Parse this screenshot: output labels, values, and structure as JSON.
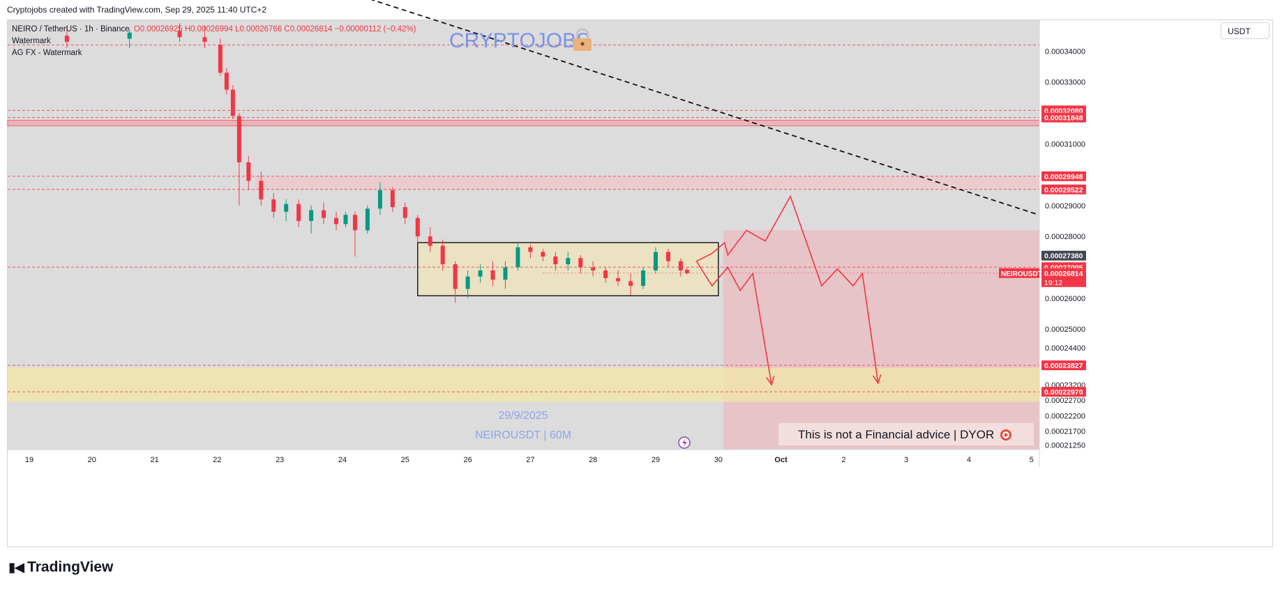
{
  "credit": "Cryptojobs created with TradingView.com, Sep 29, 2025 11:40 UTC+2",
  "legend": {
    "symbol": "NEIRO / TetherUS · 1h · Binance",
    "ohlc": "O0.00026925  H0.00026994  L0.00026766  C0.00026814  −0.00000112 (−0.42%)",
    "line2": "Watermark",
    "line3": "AG FX - Watermark"
  },
  "currency_button": "USDT",
  "brand": "TradingView",
  "chart_data": {
    "type": "candlestick",
    "symbol": "NEIROUSDT",
    "interval": "1h",
    "y_range": [
      0.000211,
      0.00035
    ],
    "x_ticks": [
      "19",
      "20",
      "21",
      "22",
      "23",
      "24",
      "25",
      "26",
      "27",
      "28",
      "29",
      "30",
      "Oct",
      "2",
      "3",
      "4",
      "5"
    ],
    "y_ticks": [
      "0.00034000",
      "0.00033000",
      "0.00031000",
      "0.00029000",
      "0.00028000",
      "0.00026000",
      "0.00025000",
      "0.00024400",
      "0.00023200",
      "0.00022700",
      "0.00022200",
      "0.00021700",
      "0.00021250"
    ],
    "y_tick_values": [
      0.00034,
      0.00033,
      0.00031,
      0.00029,
      0.00028,
      0.00026,
      0.00025,
      0.000244,
      0.000232,
      0.000227,
      0.000222,
      0.000217,
      0.0002125
    ],
    "price_labels": [
      {
        "text": "0.00032080",
        "value": 0.0003208,
        "color": "#f23645"
      },
      {
        "text": "0.00031848",
        "value": 0.00031848,
        "color": "#f23645"
      },
      {
        "text": "0.00029948",
        "value": 0.00029948,
        "color": "#f23645"
      },
      {
        "text": "0.00029522",
        "value": 0.00029522,
        "color": "#f23645"
      },
      {
        "text": "0.00027380",
        "value": 0.0002738,
        "color": "#434651"
      },
      {
        "text": "0.00027005",
        "value": 0.00027005,
        "color": "#f23645"
      },
      {
        "text": "0.00023827",
        "value": 0.00023827,
        "color": "#f23645"
      },
      {
        "text": "0.00022970",
        "value": 0.0002297,
        "color": "#f23645"
      }
    ],
    "last_price": {
      "symbol": "NEIROUSDT",
      "price": "0.00026814",
      "value": 0.00026814,
      "countdown": "19:12"
    },
    "watermark": "CRYPTOJOBS",
    "watermark_icon": "lock-icon",
    "date_label": "29/9/2025",
    "pair_label": "NEIROUSDT | 60M",
    "disclaimer": "This is not a Financial advice | DYOR",
    "disclaimer_icon": "target-icon",
    "lightning_icon": "lightning-icon",
    "zones": [
      {
        "name": "resistance-zone",
        "from": 0.0003158,
        "to": 0.0003176
      },
      {
        "name": "resistance-zone-2",
        "from": 0.00029522,
        "to": 0.00029948
      },
      {
        "name": "demand-zone",
        "from": 0.0002265,
        "to": 0.0002375
      },
      {
        "name": "consolidation-range",
        "from": 0.0002608,
        "to": 0.000278,
        "day_from": 25.2,
        "day_to": 30
      }
    ],
    "dashed_levels": [
      0.000342,
      0.0003208,
      0.00031848,
      0.00029948,
      0.00029522,
      0.00027005,
      0.00023827,
      0.0002297
    ],
    "trendline": [
      {
        "day": 23.8,
        "value": 0.000361
      },
      {
        "day": 35.1,
        "value": 0.0002871
      }
    ],
    "projection_scenario": [
      [
        29.65,
        0.000272
      ],
      [
        29.9,
        0.0002745
      ],
      [
        30.1,
        0.000278
      ],
      [
        30.15,
        0.000274
      ],
      [
        30.45,
        0.000282
      ],
      [
        30.75,
        0.0002785
      ],
      [
        31.15,
        0.000293
      ],
      [
        31.65,
        0.000264
      ],
      [
        31.9,
        0.0002695
      ],
      [
        32.15,
        0.000264
      ],
      [
        32.3,
        0.000268
      ],
      [
        32.55,
        0.0002325
      ]
    ],
    "projection_scenario_2": [
      [
        29.65,
        0.000272
      ],
      [
        29.9,
        0.000264
      ],
      [
        30.15,
        0.00027
      ],
      [
        30.35,
        0.0002625
      ],
      [
        30.55,
        0.000268
      ],
      [
        30.85,
        0.000232
      ]
    ],
    "candles": [
      {
        "d": 19.6,
        "o": 0.000345,
        "h": 0.000348,
        "l": 0.000341,
        "c": 0.000343
      },
      {
        "d": 20.6,
        "o": 0.000344,
        "h": 0.000347,
        "l": 0.000341,
        "c": 0.000346
      },
      {
        "d": 21.4,
        "o": 0.0003465,
        "h": 0.000349,
        "l": 0.000343,
        "c": 0.0003445
      },
      {
        "d": 21.8,
        "o": 0.0003445,
        "h": 0.000348,
        "l": 0.000341,
        "c": 0.000343
      },
      {
        "d": 22.05,
        "o": 0.000342,
        "h": 0.000344,
        "l": 0.000332,
        "c": 0.000333
      },
      {
        "d": 22.15,
        "o": 0.000333,
        "h": 0.0003345,
        "l": 0.000326,
        "c": 0.0003275
      },
      {
        "d": 22.25,
        "o": 0.0003275,
        "h": 0.000329,
        "l": 0.000318,
        "c": 0.000319
      },
      {
        "d": 22.35,
        "o": 0.000319,
        "h": 0.00032,
        "l": 0.00029,
        "c": 0.000304
      },
      {
        "d": 22.5,
        "o": 0.000304,
        "h": 0.000306,
        "l": 0.000295,
        "c": 0.000298
      },
      {
        "d": 22.7,
        "o": 0.000298,
        "h": 0.000301,
        "l": 0.00029,
        "c": 0.000292
      },
      {
        "d": 22.9,
        "o": 0.000292,
        "h": 0.000294,
        "l": 0.000286,
        "c": 0.000288
      },
      {
        "d": 23.1,
        "o": 0.000288,
        "h": 0.000292,
        "l": 0.000285,
        "c": 0.0002905
      },
      {
        "d": 23.3,
        "o": 0.0002905,
        "h": 0.000292,
        "l": 0.000283,
        "c": 0.000285
      },
      {
        "d": 23.5,
        "o": 0.000285,
        "h": 0.00029,
        "l": 0.000281,
        "c": 0.0002885
      },
      {
        "d": 23.7,
        "o": 0.0002885,
        "h": 0.000291,
        "l": 0.000284,
        "c": 0.000286
      },
      {
        "d": 23.9,
        "o": 0.000286,
        "h": 0.000288,
        "l": 0.000282,
        "c": 0.000284
      },
      {
        "d": 24.05,
        "o": 0.000284,
        "h": 0.000288,
        "l": 0.000283,
        "c": 0.000287
      },
      {
        "d": 24.2,
        "o": 0.000287,
        "h": 0.000288,
        "l": 0.0002735,
        "c": 0.000282
      },
      {
        "d": 24.4,
        "o": 0.000282,
        "h": 0.00029,
        "l": 0.000281,
        "c": 0.000289
      },
      {
        "d": 24.6,
        "o": 0.000289,
        "h": 0.0002975,
        "l": 0.000287,
        "c": 0.000295
      },
      {
        "d": 24.8,
        "o": 0.000295,
        "h": 0.000296,
        "l": 0.000288,
        "c": 0.0002895
      },
      {
        "d": 25.0,
        "o": 0.0002895,
        "h": 0.000291,
        "l": 0.000284,
        "c": 0.000286
      },
      {
        "d": 25.2,
        "o": 0.000286,
        "h": 0.000287,
        "l": 0.000278,
        "c": 0.00028
      },
      {
        "d": 25.4,
        "o": 0.00028,
        "h": 0.000283,
        "l": 0.000275,
        "c": 0.000277
      },
      {
        "d": 25.6,
        "o": 0.000277,
        "h": 0.000279,
        "l": 0.000269,
        "c": 0.000271
      },
      {
        "d": 25.8,
        "o": 0.000271,
        "h": 0.000272,
        "l": 0.0002585,
        "c": 0.000263
      },
      {
        "d": 26.0,
        "o": 0.000263,
        "h": 0.000269,
        "l": 0.00026,
        "c": 0.000267
      },
      {
        "d": 26.2,
        "o": 0.000267,
        "h": 0.000271,
        "l": 0.000265,
        "c": 0.000269
      },
      {
        "d": 26.4,
        "o": 0.000269,
        "h": 0.000272,
        "l": 0.000264,
        "c": 0.000266
      },
      {
        "d": 26.6,
        "o": 0.000266,
        "h": 0.000272,
        "l": 0.000263,
        "c": 0.00027
      },
      {
        "d": 26.8,
        "o": 0.00027,
        "h": 0.000278,
        "l": 0.000269,
        "c": 0.0002765
      },
      {
        "d": 27.0,
        "o": 0.0002765,
        "h": 0.0002775,
        "l": 0.000273,
        "c": 0.000275
      },
      {
        "d": 27.2,
        "o": 0.000275,
        "h": 0.000276,
        "l": 0.000272,
        "c": 0.0002735
      },
      {
        "d": 27.4,
        "o": 0.0002735,
        "h": 0.000275,
        "l": 0.000269,
        "c": 0.000271
      },
      {
        "d": 27.6,
        "o": 0.000271,
        "h": 0.000275,
        "l": 0.000269,
        "c": 0.000273
      },
      {
        "d": 27.8,
        "o": 0.000273,
        "h": 0.000274,
        "l": 0.000268,
        "c": 0.00027
      },
      {
        "d": 28.0,
        "o": 0.00027,
        "h": 0.000272,
        "l": 0.000267,
        "c": 0.000269
      },
      {
        "d": 28.2,
        "o": 0.000269,
        "h": 0.00027,
        "l": 0.000265,
        "c": 0.0002665
      },
      {
        "d": 28.4,
        "o": 0.0002665,
        "h": 0.000269,
        "l": 0.000264,
        "c": 0.0002655
      },
      {
        "d": 28.6,
        "o": 0.0002655,
        "h": 0.000268,
        "l": 0.000261,
        "c": 0.000264
      },
      {
        "d": 28.8,
        "o": 0.000264,
        "h": 0.00027,
        "l": 0.000263,
        "c": 0.000269
      },
      {
        "d": 29.0,
        "o": 0.000269,
        "h": 0.0002765,
        "l": 0.000268,
        "c": 0.000275
      },
      {
        "d": 29.2,
        "o": 0.000275,
        "h": 0.000276,
        "l": 0.00027,
        "c": 0.000272
      },
      {
        "d": 29.4,
        "o": 0.000272,
        "h": 0.000273,
        "l": 0.000267,
        "c": 0.000269
      },
      {
        "d": 29.5,
        "o": 0.0002692,
        "h": 0.0002699,
        "l": 0.0002677,
        "c": 0.0002681
      }
    ]
  }
}
